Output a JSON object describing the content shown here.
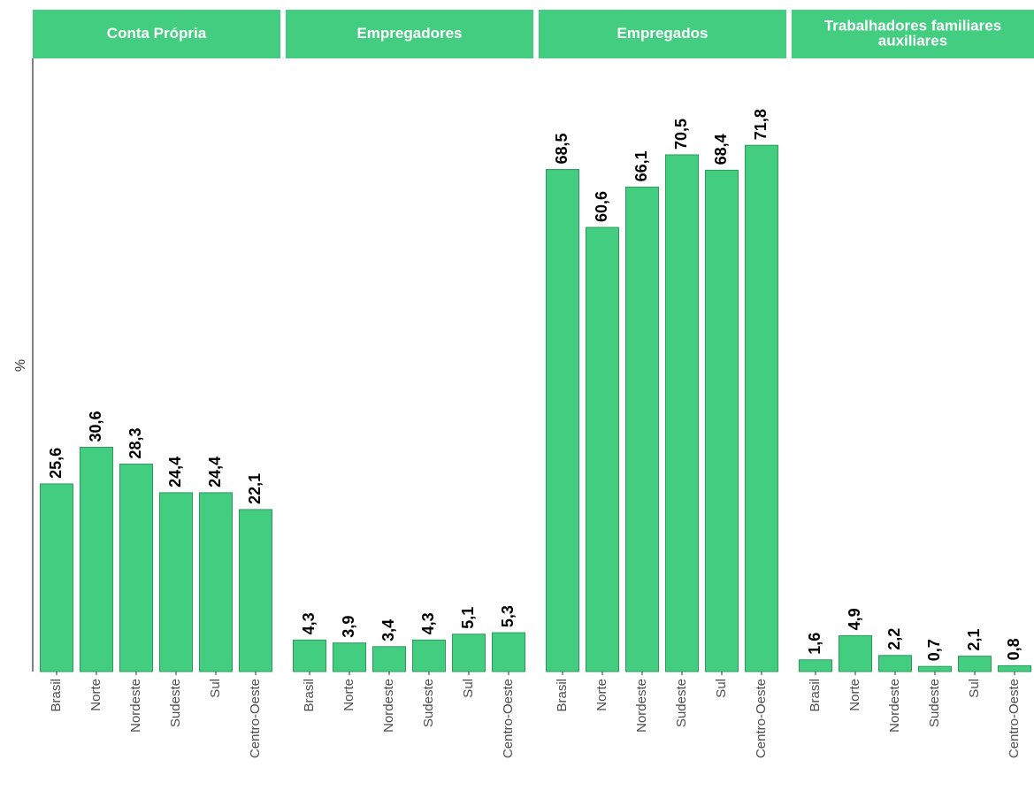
{
  "chart_data": {
    "type": "bar",
    "ylabel": "%",
    "ylim": [
      0,
      76
    ],
    "bar_color": "#43cd80",
    "bar_stroke": "#2e9a5c",
    "facet_color": "#43cd80",
    "categories": [
      "Brasil",
      "Norte",
      "Nordeste",
      "Sudeste",
      "Sul",
      "Centro-Oeste"
    ],
    "facets": [
      {
        "title_lines": [
          "Conta Própria"
        ],
        "values": [
          25.6,
          30.6,
          28.3,
          24.4,
          24.4,
          22.1
        ],
        "labels": [
          "25,6",
          "30,6",
          "28,3",
          "24,4",
          "24,4",
          "22,1"
        ]
      },
      {
        "title_lines": [
          "Empregadores"
        ],
        "values": [
          4.3,
          3.9,
          3.4,
          4.3,
          5.1,
          5.3
        ],
        "labels": [
          "4,3",
          "3,9",
          "3,4",
          "4,3",
          "5,1",
          "5,3"
        ]
      },
      {
        "title_lines": [
          "Empregados"
        ],
        "values": [
          68.5,
          60.6,
          66.1,
          70.5,
          68.4,
          71.8
        ],
        "labels": [
          "68,5",
          "60,6",
          "66,1",
          "70,5",
          "68,4",
          "71,8"
        ]
      },
      {
        "title_lines": [
          "Trabalhadores familiares",
          "auxiliares"
        ],
        "values": [
          1.6,
          4.9,
          2.2,
          0.7,
          2.1,
          0.8
        ],
        "labels": [
          "1,6",
          "4,9",
          "2,2",
          "0,7",
          "2,1",
          "0,8"
        ]
      }
    ]
  }
}
